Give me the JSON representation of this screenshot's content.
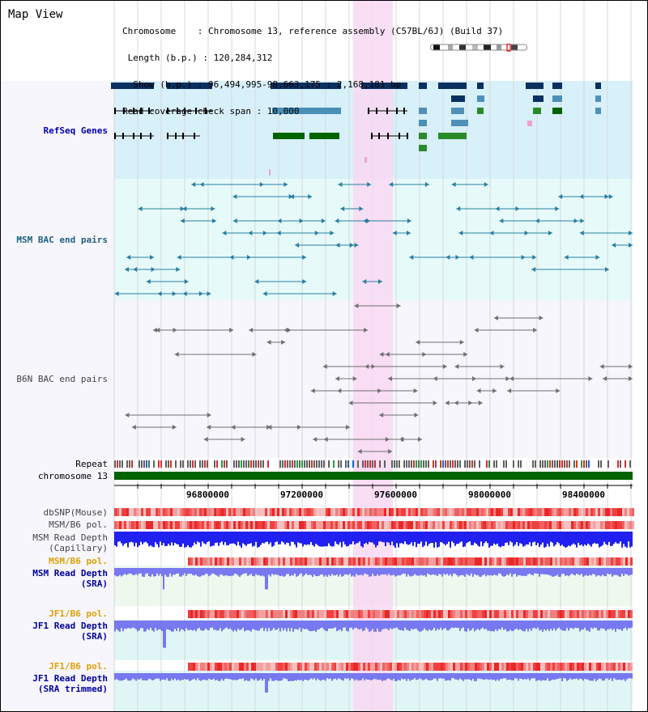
{
  "header": {
    "title": "Map View",
    "info_lines": [
      "Chromosome    : Chromosome 13, reference assembly (C57BL/6J) (Build 37)",
      " Length (b.p.) : 120,284,312",
      "  Show (b.p.) : 96,494,995-98,663,175 : 2,168,181 bp",
      "Read coverage check span : 10,000"
    ]
  },
  "tracks": {
    "refseq": "RefSeq Genes",
    "msm_bac": "MSM BAC end pairs",
    "b6n_bac": "B6N BAC end pairs",
    "repeat": "Repeat",
    "chromosome": "chromosome 13",
    "dbsnp": "dbSNP(Mouse)",
    "msm_b6_pol_1": "MSM/B6 pol.",
    "msm_read_depth_cap": [
      "MSM Read Depth",
      "(Capillary)"
    ],
    "msm_b6_pol_2": "MSM/B6 pol.",
    "msm_read_depth_sra": [
      "MSM Read Depth",
      "(SRA)"
    ],
    "jf1_b6_pol_1": "JF1/B6 pol.",
    "jf1_read_depth_sra": [
      "JF1 Read Depth",
      "(SRA)"
    ],
    "jf1_b6_pol_2": "JF1/B6 pol.",
    "jf1_read_depth_trim": [
      "JF1 Read Depth",
      "(SRA trimmed)"
    ]
  },
  "axis": {
    "ticks": [
      "96800000",
      "97200000",
      "97600000",
      "98000000",
      "98400000"
    ]
  },
  "colors": {
    "refseq_bg": "#d8f0fa",
    "msm_bac_bg": "#e6fafa",
    "b6n_bac_bg": "#f6f6fc",
    "highlight": "#f8d8f2",
    "chromosome_bar": "#006400",
    "refseq_label": "#0000b0",
    "msm_label": "#206080",
    "pol_label": "#e0a000",
    "depth_label": "#0000a0",
    "depth_capillary": "#2020f0",
    "depth_sra": "#7878f0"
  }
}
